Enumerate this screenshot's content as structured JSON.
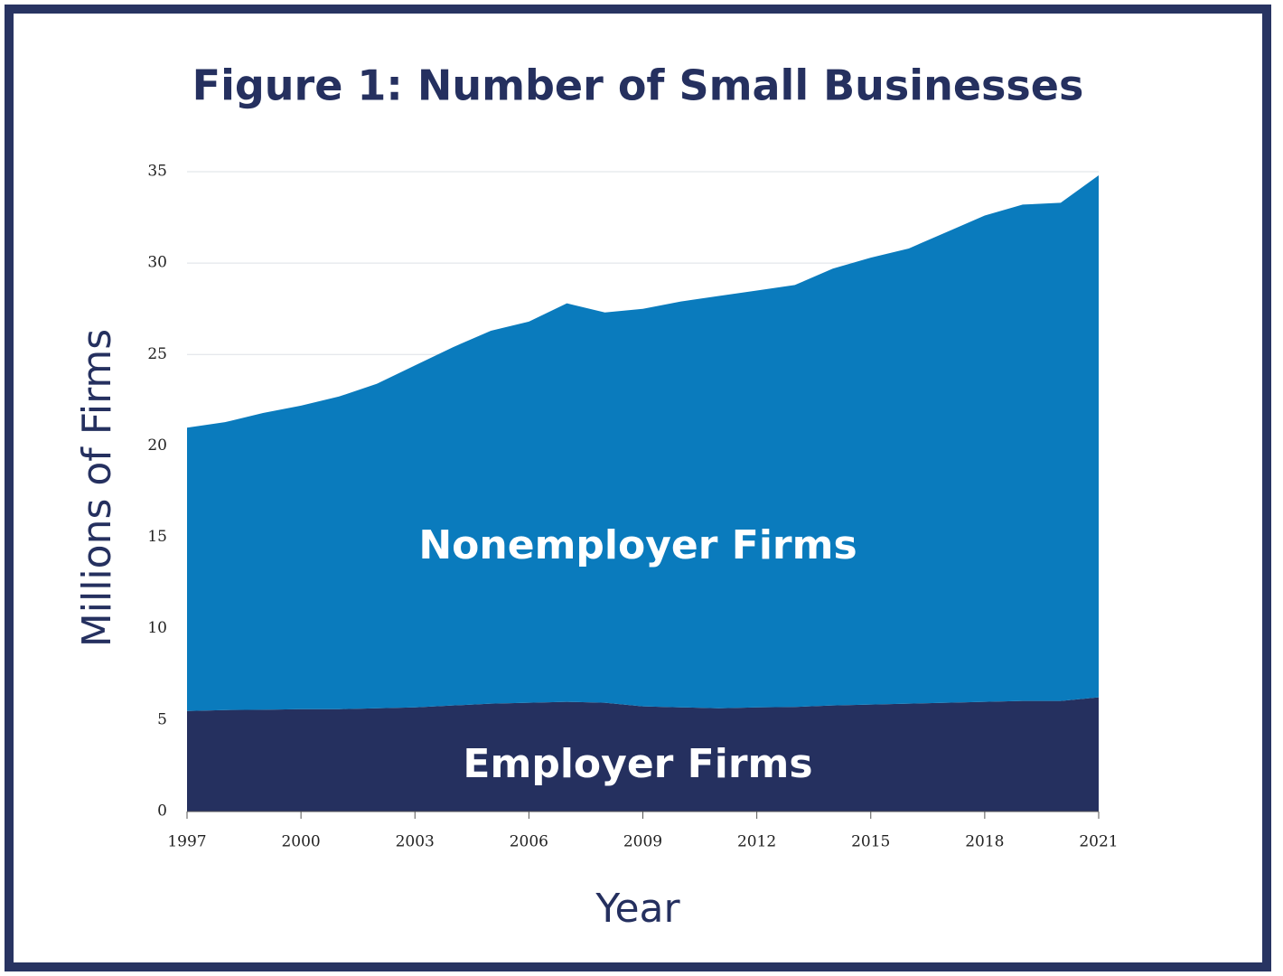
{
  "chart_data": {
    "type": "stacked_area",
    "title": "Figure 1: Number of Small Businesses",
    "x_label": "Year",
    "y_label": "Millions of Firms",
    "x": [
      1997,
      1998,
      1999,
      2000,
      2001,
      2002,
      2003,
      2004,
      2005,
      2006,
      2007,
      2008,
      2009,
      2010,
      2011,
      2012,
      2013,
      2014,
      2015,
      2016,
      2017,
      2018,
      2019,
      2020,
      2021
    ],
    "series": [
      {
        "name": "Employer Firms",
        "color": "#25305f",
        "values": [
          5.5,
          5.55,
          5.57,
          5.6,
          5.6,
          5.65,
          5.7,
          5.8,
          5.9,
          5.95,
          6.0,
          5.95,
          5.75,
          5.7,
          5.65,
          5.7,
          5.72,
          5.8,
          5.85,
          5.9,
          5.95,
          6.0,
          6.05,
          6.05,
          6.25
        ]
      },
      {
        "name": "Nonemployer Firms",
        "color": "#0a7bbd",
        "values": [
          15.5,
          15.75,
          16.23,
          16.6,
          17.1,
          17.75,
          18.7,
          19.6,
          20.4,
          20.85,
          21.8,
          21.35,
          21.75,
          22.2,
          22.55,
          22.8,
          23.08,
          23.9,
          24.45,
          24.9,
          25.75,
          26.6,
          27.15,
          27.25,
          28.55
        ]
      }
    ],
    "xlim": [
      1997,
      2021
    ],
    "xticks": [
      1997,
      2000,
      2003,
      2006,
      2009,
      2012,
      2015,
      2018,
      2021
    ],
    "ylim": [
      0,
      35
    ],
    "yticks": [
      0,
      5,
      10,
      15,
      20,
      25,
      30,
      35
    ],
    "grid": true
  }
}
